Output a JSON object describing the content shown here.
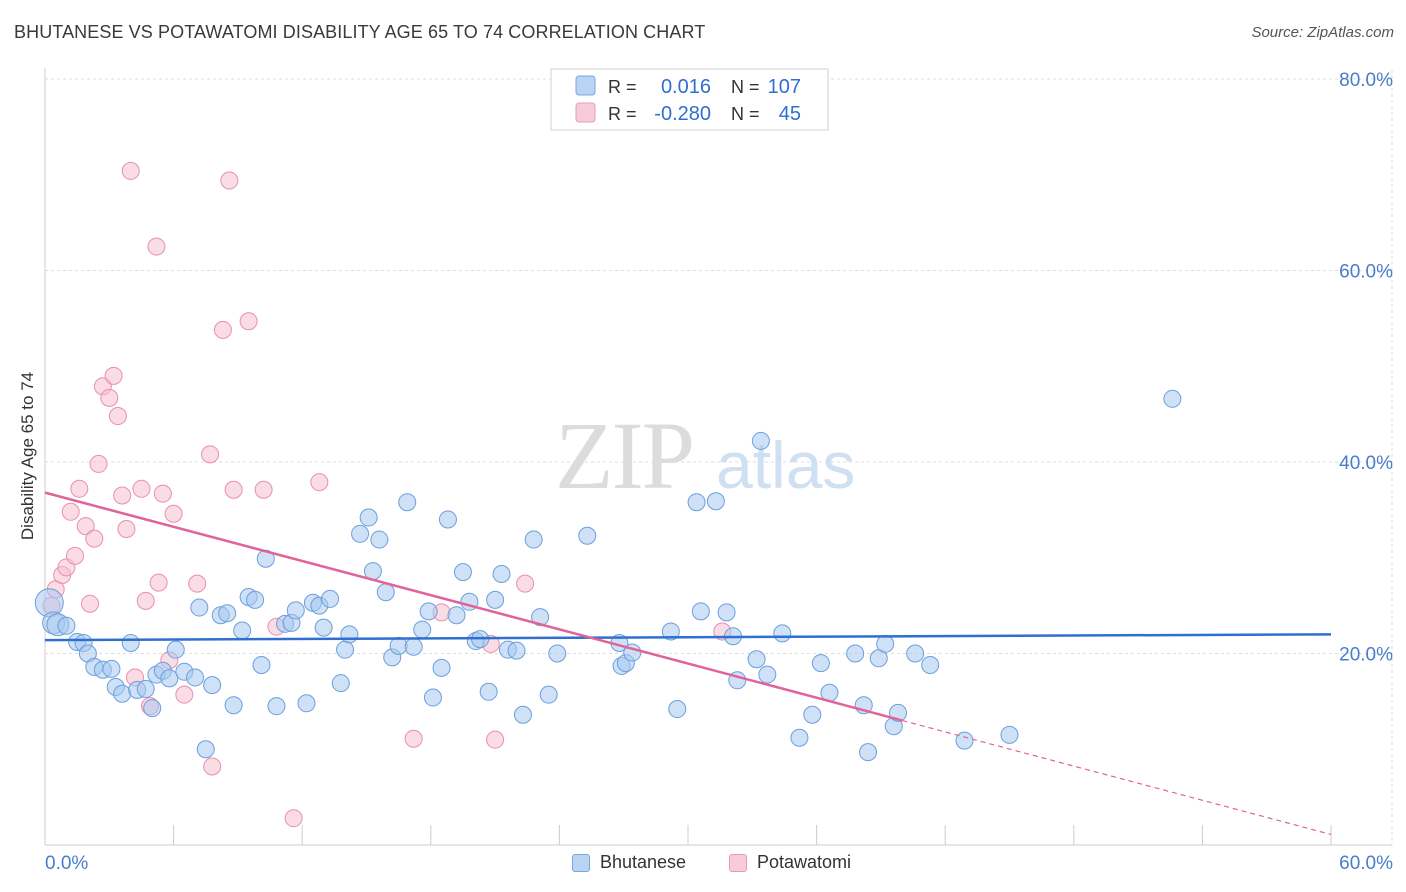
{
  "title": "BHUTANESE VS POTAWATOMI DISABILITY AGE 65 TO 74 CORRELATION CHART",
  "source": "Source: ZipAtlas.com",
  "watermark": {
    "zip": "ZIP",
    "atlas": "atlas"
  },
  "colors": {
    "blue_fill": "#a8c8f0",
    "blue_stroke": "#6b9fdc",
    "blue_line": "#2f6fd0",
    "pink_fill": "#f6bfd0",
    "pink_stroke": "#e98fae",
    "pink_line": "#e0639a",
    "grid": "#dddddd",
    "axis_text": "#4a7cc9"
  },
  "legend": {
    "rows": [
      {
        "r_label": "R =",
        "r_value": "0.016",
        "n_label": "N =",
        "n_value": "107"
      },
      {
        "r_label": "R =",
        "r_value": "-0.280",
        "n_label": "N =",
        "n_value": "45"
      }
    ]
  },
  "bottom_legend": [
    "Bhutanese",
    "Potawatomi"
  ],
  "chart_data": {
    "type": "scatter",
    "title": "BHUTANESE VS POTAWATOMI DISABILITY AGE 65 TO 74 CORRELATION CHART",
    "xlabel": "",
    "ylabel": "Disability Age 65 to 74",
    "xlim": [
      0,
      60
    ],
    "ylim": [
      0,
      80
    ],
    "x_tick_labels": [
      "0.0%",
      "60.0%"
    ],
    "y_tick_labels": [
      "20.0%",
      "40.0%",
      "60.0%",
      "80.0%"
    ],
    "y_ticks": [
      20,
      40,
      60,
      80
    ],
    "grid": true,
    "series": [
      {
        "name": "Bhutanese",
        "r": 0.016,
        "n": 107,
        "trend": {
          "x": [
            0,
            60
          ],
          "y": [
            21.4,
            22.0
          ]
        },
        "points": [
          [
            0.2,
            25.3
          ],
          [
            0.4,
            23.2
          ],
          [
            0.6,
            23.0
          ],
          [
            1.0,
            22.9
          ],
          [
            1.5,
            21.2
          ],
          [
            1.8,
            21.1
          ],
          [
            2.0,
            20.0
          ],
          [
            2.3,
            18.6
          ],
          [
            2.7,
            18.3
          ],
          [
            3.1,
            18.4
          ],
          [
            3.3,
            16.5
          ],
          [
            3.6,
            15.8
          ],
          [
            4.0,
            21.1
          ],
          [
            4.3,
            16.2
          ],
          [
            4.7,
            16.3
          ],
          [
            5.0,
            14.3
          ],
          [
            5.2,
            17.8
          ],
          [
            5.5,
            18.2
          ],
          [
            5.8,
            17.4
          ],
          [
            6.1,
            20.4
          ],
          [
            6.5,
            18.1
          ],
          [
            7.0,
            17.5
          ],
          [
            7.2,
            24.8
          ],
          [
            7.5,
            10.0
          ],
          [
            7.8,
            16.7
          ],
          [
            8.2,
            24.0
          ],
          [
            8.5,
            24.2
          ],
          [
            8.8,
            14.6
          ],
          [
            9.2,
            22.4
          ],
          [
            9.5,
            25.9
          ],
          [
            9.8,
            25.6
          ],
          [
            10.1,
            18.8
          ],
          [
            10.3,
            29.9
          ],
          [
            10.8,
            14.5
          ],
          [
            11.2,
            23.1
          ],
          [
            11.5,
            23.2
          ],
          [
            11.7,
            24.5
          ],
          [
            12.2,
            14.8
          ],
          [
            12.5,
            25.3
          ],
          [
            12.8,
            25.0
          ],
          [
            13.0,
            22.7
          ],
          [
            13.3,
            25.7
          ],
          [
            13.8,
            16.9
          ],
          [
            14.0,
            20.4
          ],
          [
            14.2,
            22.0
          ],
          [
            14.7,
            32.5
          ],
          [
            15.1,
            34.2
          ],
          [
            15.3,
            28.6
          ],
          [
            15.6,
            31.9
          ],
          [
            15.9,
            26.4
          ],
          [
            16.2,
            19.6
          ],
          [
            16.5,
            20.8
          ],
          [
            16.9,
            35.8
          ],
          [
            17.2,
            20.7
          ],
          [
            17.6,
            22.5
          ],
          [
            17.9,
            24.4
          ],
          [
            18.1,
            15.4
          ],
          [
            18.5,
            18.5
          ],
          [
            18.8,
            34.0
          ],
          [
            19.2,
            24.0
          ],
          [
            19.5,
            28.5
          ],
          [
            19.8,
            25.4
          ],
          [
            20.1,
            21.3
          ],
          [
            20.3,
            21.5
          ],
          [
            20.7,
            16.0
          ],
          [
            21.0,
            25.6
          ],
          [
            21.3,
            28.3
          ],
          [
            21.6,
            20.4
          ],
          [
            22.0,
            20.3
          ],
          [
            22.3,
            13.6
          ],
          [
            22.8,
            31.9
          ],
          [
            23.1,
            23.8
          ],
          [
            23.5,
            15.7
          ],
          [
            23.9,
            20.0
          ],
          [
            25.3,
            32.3
          ],
          [
            26.8,
            21.1
          ],
          [
            26.9,
            18.7
          ],
          [
            27.1,
            19.0
          ],
          [
            27.4,
            20.1
          ],
          [
            29.2,
            22.3
          ],
          [
            29.5,
            14.2
          ],
          [
            30.4,
            35.8
          ],
          [
            30.6,
            24.4
          ],
          [
            31.3,
            35.9
          ],
          [
            31.8,
            24.3
          ],
          [
            32.1,
            21.8
          ],
          [
            32.3,
            17.2
          ],
          [
            33.2,
            19.4
          ],
          [
            33.4,
            42.2
          ],
          [
            33.7,
            17.8
          ],
          [
            34.4,
            22.1
          ],
          [
            35.2,
            11.2
          ],
          [
            35.8,
            13.6
          ],
          [
            36.2,
            19.0
          ],
          [
            36.6,
            15.9
          ],
          [
            37.8,
            20.0
          ],
          [
            38.2,
            14.6
          ],
          [
            38.4,
            9.7
          ],
          [
            38.9,
            19.5
          ],
          [
            39.2,
            21.0
          ],
          [
            39.6,
            12.4
          ],
          [
            39.8,
            13.8
          ],
          [
            40.6,
            20.0
          ],
          [
            41.3,
            18.8
          ],
          [
            42.9,
            10.9
          ],
          [
            45.0,
            11.5
          ],
          [
            52.6,
            46.6
          ]
        ]
      },
      {
        "name": "Potawatomi",
        "r": -0.28,
        "n": 45,
        "trend": {
          "x": [
            0,
            40
          ],
          "y": [
            36.8,
            13.0
          ]
        },
        "trend_ext": {
          "x": [
            40,
            60
          ],
          "y": [
            13.0,
            1.1
          ]
        },
        "points": [
          [
            0.3,
            25.0
          ],
          [
            0.5,
            26.7
          ],
          [
            0.8,
            28.2
          ],
          [
            1.0,
            29.0
          ],
          [
            1.2,
            34.8
          ],
          [
            1.4,
            30.2
          ],
          [
            1.6,
            37.2
          ],
          [
            1.9,
            33.3
          ],
          [
            2.1,
            25.2
          ],
          [
            2.3,
            32.0
          ],
          [
            2.5,
            39.8
          ],
          [
            2.7,
            47.9
          ],
          [
            3.0,
            46.7
          ],
          [
            3.2,
            49.0
          ],
          [
            3.4,
            44.8
          ],
          [
            3.6,
            36.5
          ],
          [
            3.8,
            33.0
          ],
          [
            4.0,
            70.4
          ],
          [
            4.2,
            17.5
          ],
          [
            4.5,
            37.2
          ],
          [
            4.7,
            25.5
          ],
          [
            4.9,
            14.5
          ],
          [
            5.2,
            62.5
          ],
          [
            5.3,
            27.4
          ],
          [
            5.5,
            36.7
          ],
          [
            5.8,
            19.3
          ],
          [
            6.0,
            34.6
          ],
          [
            6.5,
            15.7
          ],
          [
            7.1,
            27.3
          ],
          [
            7.7,
            40.8
          ],
          [
            7.8,
            8.2
          ],
          [
            8.3,
            53.8
          ],
          [
            8.6,
            69.4
          ],
          [
            8.8,
            37.1
          ],
          [
            9.5,
            54.7
          ],
          [
            10.2,
            37.1
          ],
          [
            10.8,
            22.8
          ],
          [
            11.6,
            2.8
          ],
          [
            12.8,
            37.9
          ],
          [
            17.2,
            11.1
          ],
          [
            18.5,
            24.3
          ],
          [
            21.0,
            11.0
          ],
          [
            20.8,
            21.0
          ],
          [
            22.4,
            27.3
          ],
          [
            31.6,
            22.3
          ]
        ]
      }
    ]
  }
}
